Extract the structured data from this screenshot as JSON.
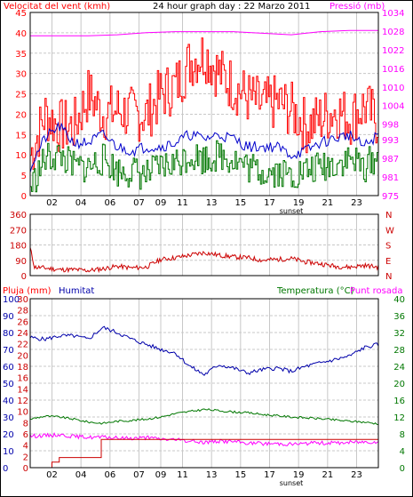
{
  "header": {
    "title": "24 hour graph day : 22 Marzo 2011",
    "left_label": "Velocitat del vent (kmh)",
    "right_label": "Pressió (mb)"
  },
  "colors": {
    "background": "#ffffff",
    "frame": "#000000",
    "grid": "#c8c8c8",
    "wind_gust": "#ff0000",
    "wind_avg": "#0000cc",
    "wind_low": "#007700",
    "pressure": "#ff00ff",
    "wind_direction": "#cc0000",
    "humidity": "#0000aa",
    "temperature": "#007700",
    "dew_point": "#ff00ff",
    "rain": "#cc0000"
  },
  "chart_data": [
    {
      "type": "line",
      "id": "wind_pressure",
      "xlim": [
        0,
        24
      ],
      "x_ticks": [
        "02",
        "04",
        "06",
        "07",
        "09",
        "11",
        "13",
        "15",
        "17",
        "19",
        "21",
        "23"
      ],
      "x_tick_positions": [
        1.5,
        3.5,
        5.5,
        7.5,
        9.0,
        10.5,
        12.5,
        14.5,
        16.5,
        18.5,
        20.5,
        22.5
      ],
      "annotation": "sunset",
      "annotation_x": 18.0,
      "y_left": {
        "label": "Velocitat del vent (kmh)",
        "ylim": [
          0,
          45
        ],
        "ticks": [
          0,
          5,
          10,
          15,
          20,
          25,
          30,
          35,
          40,
          45
        ]
      },
      "y_right": {
        "label": "Pressió (mb)",
        "ylim": [
          975,
          1034
        ],
        "ticks": [
          975,
          981,
          987,
          993,
          998,
          1004,
          1010,
          1016,
          1022,
          1028,
          1034
        ]
      },
      "grid": true,
      "series": [
        {
          "key": "gust",
          "axis": "left",
          "seed": 7,
          "x": [
            0,
            1,
            2,
            3,
            4,
            5,
            6,
            7,
            8,
            9,
            10,
            11,
            12,
            13,
            14,
            15,
            16,
            17,
            18,
            19,
            20,
            21,
            22,
            23,
            24
          ],
          "y": [
            10,
            20,
            17,
            17,
            25,
            20,
            21,
            20,
            20,
            25,
            27,
            33,
            35,
            30,
            27,
            24,
            22,
            23,
            21,
            17,
            19,
            21,
            19,
            22,
            18
          ]
        },
        {
          "key": "average",
          "axis": "left",
          "seed": 21,
          "x": [
            0,
            1,
            2,
            3,
            4,
            5,
            6,
            7,
            8,
            9,
            10,
            11,
            12,
            13,
            14,
            15,
            16,
            17,
            18,
            19,
            20,
            21,
            22,
            23,
            24
          ],
          "y": [
            7,
            14,
            17,
            13,
            13,
            15,
            12,
            11,
            12,
            12,
            13,
            15,
            14,
            15,
            14,
            12,
            12,
            12,
            10,
            11,
            13,
            14,
            15,
            12,
            15
          ]
        },
        {
          "key": "low",
          "axis": "left",
          "seed": 33,
          "x": [
            0,
            1,
            2,
            3,
            4,
            5,
            6,
            7,
            8,
            9,
            10,
            11,
            12,
            13,
            14,
            15,
            16,
            17,
            18,
            19,
            20,
            21,
            22,
            23,
            24
          ],
          "y": [
            2,
            9,
            10,
            7,
            7,
            9,
            6,
            6,
            5,
            7,
            8,
            10,
            9,
            10,
            9,
            7,
            6,
            6,
            5,
            6,
            7,
            8,
            9,
            7,
            10
          ]
        },
        {
          "key": "pressure",
          "axis": "right",
          "x": [
            0,
            2,
            4,
            6,
            8,
            10,
            12,
            14,
            16,
            18,
            20,
            22,
            24
          ],
          "y": [
            1026.5,
            1026.5,
            1026.5,
            1026.8,
            1027.5,
            1027.8,
            1027.8,
            1027.8,
            1027.3,
            1026.8,
            1027.8,
            1028.2,
            1028.2
          ]
        }
      ]
    },
    {
      "type": "line",
      "id": "wind_direction",
      "xlim": [
        0,
        24
      ],
      "y_left": {
        "ylim": [
          0,
          360
        ],
        "ticks": [
          0,
          90,
          180,
          270,
          360
        ]
      },
      "y_right_labels": [
        "N",
        "W",
        "S",
        "E",
        "N"
      ],
      "grid": true,
      "series": [
        {
          "key": "direction",
          "seed": 11,
          "x": [
            0,
            0.3,
            1,
            2,
            3,
            4,
            5,
            6,
            7,
            8,
            9,
            10,
            11,
            12,
            13,
            14,
            15,
            16,
            17,
            18,
            19,
            20,
            21,
            22,
            23,
            24
          ],
          "y": [
            160,
            50,
            45,
            35,
            35,
            30,
            40,
            55,
            45,
            50,
            95,
            105,
            120,
            135,
            120,
            110,
            105,
            90,
            95,
            100,
            80,
            70,
            55,
            50,
            60,
            50
          ]
        }
      ]
    },
    {
      "type": "line",
      "id": "temp_humidity_rain",
      "xlim": [
        0,
        24
      ],
      "x_ticks": [
        "02",
        "04",
        "06",
        "07",
        "09",
        "11",
        "13",
        "15",
        "17",
        "19",
        "21",
        "23"
      ],
      "x_tick_positions": [
        1.5,
        3.5,
        5.5,
        7.5,
        9.0,
        10.5,
        12.5,
        14.5,
        16.5,
        18.5,
        20.5,
        22.5
      ],
      "annotation": "sunset",
      "annotation_x": 18.0,
      "labels": {
        "rain": "Pluja (mm)",
        "humidity": "Humitat",
        "temperature": "Temperatura (°C)",
        "dew_point": "Punt rosada"
      },
      "y_rain": {
        "ylim": [
          0,
          30
        ],
        "ticks": [
          0,
          2,
          4,
          6,
          8,
          10,
          12,
          14,
          16,
          18,
          20,
          22,
          24,
          26,
          28,
          30
        ]
      },
      "y_humidity": {
        "ylim": [
          0,
          100
        ],
        "ticks": [
          0,
          10,
          20,
          30,
          40,
          50,
          60,
          70,
          80,
          90,
          100
        ]
      },
      "y_temperature": {
        "ylim": [
          0,
          40
        ],
        "ticks": [
          0,
          4,
          8,
          12,
          16,
          20,
          24,
          28,
          32,
          36,
          40
        ]
      },
      "grid": true,
      "series": [
        {
          "key": "humidity",
          "axis": "humidity",
          "seed": 5,
          "x": [
            0,
            1,
            2,
            3,
            4,
            5,
            6,
            7,
            8,
            9,
            10,
            11,
            12,
            13,
            14,
            15,
            16,
            17,
            18,
            19,
            20,
            21,
            22,
            23,
            24
          ],
          "y": [
            77,
            76,
            78,
            78,
            76,
            83,
            80,
            76,
            73,
            70,
            68,
            60,
            55,
            61,
            59,
            56,
            58,
            59,
            57,
            60,
            62,
            64,
            66,
            71,
            73
          ]
        },
        {
          "key": "temperature",
          "axis": "temperature",
          "seed": 9,
          "x": [
            0,
            1,
            2,
            3,
            4,
            5,
            6,
            7,
            8,
            9,
            10,
            11,
            12,
            13,
            14,
            15,
            16,
            17,
            18,
            19,
            20,
            21,
            22,
            23,
            24
          ],
          "y": [
            11.5,
            12.2,
            12.0,
            11.5,
            10.8,
            10.5,
            11.0,
            11.2,
            11.5,
            12.0,
            12.8,
            13.3,
            13.8,
            13.5,
            13.2,
            13.0,
            12.6,
            12.3,
            12.0,
            11.8,
            11.6,
            11.3,
            11.0,
            10.8,
            10.4
          ]
        },
        {
          "key": "dew_point",
          "axis": "temperature",
          "seed": 15,
          "x": [
            0,
            1,
            2,
            3,
            4,
            5,
            6,
            7,
            8,
            9,
            10,
            11,
            12,
            13,
            14,
            15,
            16,
            17,
            18,
            19,
            20,
            21,
            22,
            23,
            24
          ],
          "y": [
            7.5,
            7.6,
            7.8,
            7.4,
            7.2,
            7.2,
            7.0,
            7.0,
            7.1,
            6.8,
            6.6,
            6.3,
            6.0,
            6.3,
            6.2,
            5.8,
            5.7,
            5.7,
            5.6,
            5.7,
            5.9,
            5.8,
            6.0,
            6.1,
            6.2
          ]
        },
        {
          "key": "rain",
          "axis": "rain",
          "x": [
            0,
            1.4,
            1.5,
            1.9,
            2.0,
            4.8,
            4.9,
            10.0,
            24
          ],
          "y": [
            0,
            0,
            1,
            1,
            1.8,
            1.8,
            5.0,
            5.0,
            5.0
          ]
        }
      ]
    }
  ]
}
